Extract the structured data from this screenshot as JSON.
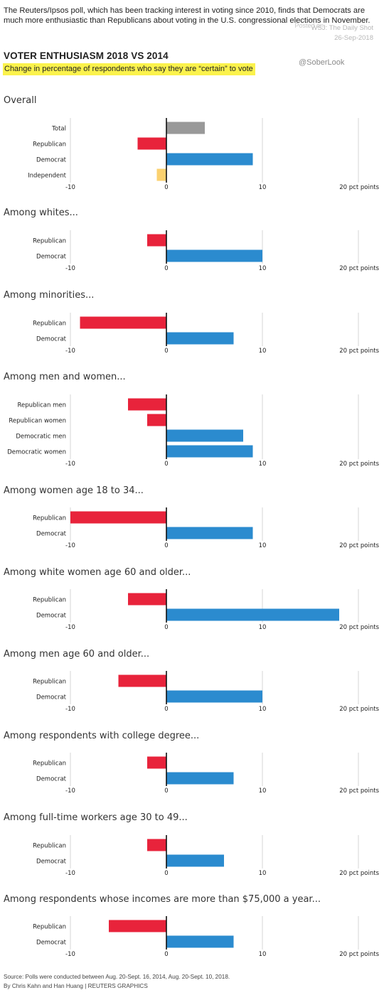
{
  "intro": "The Reuters/Ipsos poll, which has been tracking interest in voting since 2010, finds that Democrats are much more enthusiastic than Republicans about voting in the U.S. congressional elections in November.",
  "watermark": {
    "posted": "Posted on",
    "source": "WSJ: The Daily Shot",
    "date": "26-Sep-2018",
    "handle": "@SoberLook"
  },
  "title": "VOTER ENTHUSIASM 2018 VS 2014",
  "subtitle": "Change in percentage of respondents who say they are “certain” to vote",
  "colors": {
    "total": "#999999",
    "republican": "#e8233b",
    "democrat": "#2b8bcf",
    "independent": "#fbd16f"
  },
  "axis": {
    "range": [
      -10,
      20
    ],
    "ticks": [
      "-10",
      "0",
      "10",
      "20 pct points"
    ]
  },
  "chart_data": [
    {
      "type": "bar",
      "title": "Overall",
      "categories": [
        "Total",
        "Republican",
        "Democrat",
        "Independent"
      ],
      "values": [
        4,
        -3,
        9,
        -1
      ],
      "series_colors": [
        "total",
        "republican",
        "democrat",
        "independent"
      ],
      "xlim": [
        -10,
        20
      ]
    },
    {
      "type": "bar",
      "title": "Among whites...",
      "categories": [
        "Republican",
        "Democrat"
      ],
      "values": [
        -2,
        10
      ],
      "series_colors": [
        "republican",
        "democrat"
      ],
      "xlim": [
        -10,
        20
      ]
    },
    {
      "type": "bar",
      "title": "Among minorities...",
      "categories": [
        "Republican",
        "Democrat"
      ],
      "values": [
        -9,
        7
      ],
      "series_colors": [
        "republican",
        "democrat"
      ],
      "xlim": [
        -10,
        20
      ]
    },
    {
      "type": "bar",
      "title": "Among men and women...",
      "categories": [
        "Republican men",
        "Republican women",
        "Democratic men",
        "Democratic women"
      ],
      "values": [
        -4,
        -2,
        8,
        9
      ],
      "series_colors": [
        "republican",
        "republican",
        "democrat",
        "democrat"
      ],
      "xlim": [
        -10,
        20
      ]
    },
    {
      "type": "bar",
      "title": "Among women age 18 to 34...",
      "categories": [
        "Republican",
        "Democrat"
      ],
      "values": [
        -10,
        9
      ],
      "series_colors": [
        "republican",
        "democrat"
      ],
      "xlim": [
        -10,
        20
      ]
    },
    {
      "type": "bar",
      "title": "Among white women age 60 and older...",
      "categories": [
        "Republican",
        "Democrat"
      ],
      "values": [
        -4,
        18
      ],
      "series_colors": [
        "republican",
        "democrat"
      ],
      "xlim": [
        -10,
        20
      ]
    },
    {
      "type": "bar",
      "title": "Among men age 60 and older...",
      "categories": [
        "Republican",
        "Democrat"
      ],
      "values": [
        -5,
        10
      ],
      "series_colors": [
        "republican",
        "democrat"
      ],
      "xlim": [
        -10,
        20
      ]
    },
    {
      "type": "bar",
      "title": "Among respondents with college degree...",
      "categories": [
        "Republican",
        "Democrat"
      ],
      "values": [
        -2,
        7
      ],
      "series_colors": [
        "republican",
        "democrat"
      ],
      "xlim": [
        -10,
        20
      ]
    },
    {
      "type": "bar",
      "title": "Among full-time workers age 30 to 49...",
      "categories": [
        "Republican",
        "Democrat"
      ],
      "values": [
        -2,
        6
      ],
      "series_colors": [
        "republican",
        "democrat"
      ],
      "xlim": [
        -10,
        20
      ]
    },
    {
      "type": "bar",
      "title": "Among respondents whose incomes are more than $75,000 a year...",
      "categories": [
        "Republican",
        "Democrat"
      ],
      "values": [
        -6,
        7
      ],
      "series_colors": [
        "republican",
        "democrat"
      ],
      "xlim": [
        -10,
        20
      ]
    }
  ],
  "footer": {
    "source": "Source: Polls were conducted between Aug. 20-Sept. 16, 2014, Aug. 20-Sept. 10, 2018.",
    "credit": "By Chris Kahn and Han Huang | REUTERS GRAPHICS"
  }
}
